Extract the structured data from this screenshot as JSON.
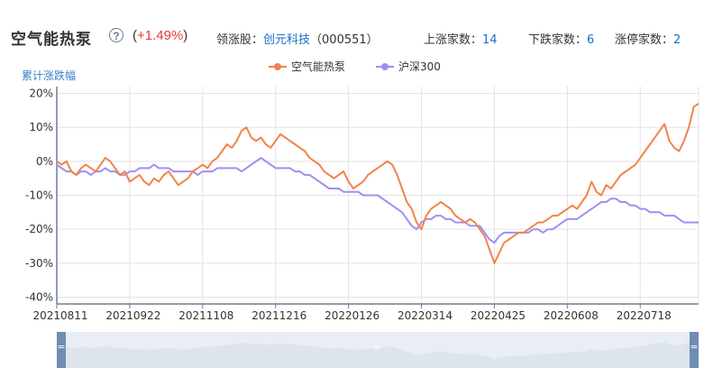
{
  "header": {
    "title": "空气能热泵",
    "help_symbol": "?",
    "change_open": "(",
    "change_pct": "+1.49%",
    "change_close": ")",
    "leader_label": "领涨股：",
    "leader_name": "创元科技",
    "leader_code": "（000551）",
    "up_label": "上涨家数：",
    "up_count": "14",
    "down_label": "下跌家数：",
    "down_count": "6",
    "limit_label": "涨停家数：",
    "limit_count": "2"
  },
  "colors": {
    "sector": "#f2834a",
    "index": "#a08ff0",
    "accent_red": "#e8393a",
    "link_blue": "#1a6fc4",
    "axis": "#6a7f99"
  },
  "chart_data": {
    "type": "line",
    "ylabel": "累计涨跌幅",
    "ylim": [
      -42,
      22
    ],
    "yticks": [
      20,
      10,
      0,
      -10,
      -20,
      -30,
      -40
    ],
    "ytick_labels": [
      "20%",
      "10%",
      "0%",
      "-10%",
      "-20%",
      "-30%",
      "-40%"
    ],
    "x_tick_labels": [
      "20210811",
      "20210922",
      "20211108",
      "20211216",
      "20220126",
      "20220314",
      "20220425",
      "20220608",
      "20220718"
    ],
    "x_tick_positions": [
      0,
      30,
      60,
      90,
      120,
      150,
      180,
      210,
      240
    ],
    "x_max": 264,
    "grid": true,
    "legend_position": "top-center",
    "series": [
      {
        "name": "空气能热泵",
        "points": [
          [
            0,
            0
          ],
          [
            2,
            -1
          ],
          [
            4,
            0
          ],
          [
            6,
            -3
          ],
          [
            8,
            -4
          ],
          [
            10,
            -2
          ],
          [
            12,
            -1
          ],
          [
            14,
            -2
          ],
          [
            16,
            -3
          ],
          [
            18,
            -1
          ],
          [
            20,
            1
          ],
          [
            22,
            0
          ],
          [
            24,
            -2
          ],
          [
            26,
            -4
          ],
          [
            28,
            -3
          ],
          [
            30,
            -6
          ],
          [
            32,
            -5
          ],
          [
            34,
            -4
          ],
          [
            36,
            -6
          ],
          [
            38,
            -7
          ],
          [
            40,
            -5
          ],
          [
            42,
            -6
          ],
          [
            44,
            -4
          ],
          [
            46,
            -3
          ],
          [
            48,
            -5
          ],
          [
            50,
            -7
          ],
          [
            52,
            -6
          ],
          [
            54,
            -5
          ],
          [
            56,
            -3
          ],
          [
            58,
            -2
          ],
          [
            60,
            -1
          ],
          [
            62,
            -2
          ],
          [
            64,
            0
          ],
          [
            66,
            1
          ],
          [
            68,
            3
          ],
          [
            70,
            5
          ],
          [
            72,
            4
          ],
          [
            74,
            6
          ],
          [
            76,
            9
          ],
          [
            78,
            10
          ],
          [
            80,
            7
          ],
          [
            82,
            6
          ],
          [
            84,
            7
          ],
          [
            86,
            5
          ],
          [
            88,
            4
          ],
          [
            90,
            6
          ],
          [
            92,
            8
          ],
          [
            94,
            7
          ],
          [
            96,
            6
          ],
          [
            98,
            5
          ],
          [
            100,
            4
          ],
          [
            102,
            3
          ],
          [
            104,
            1
          ],
          [
            106,
            0
          ],
          [
            108,
            -1
          ],
          [
            110,
            -3
          ],
          [
            112,
            -4
          ],
          [
            114,
            -5
          ],
          [
            116,
            -4
          ],
          [
            118,
            -3
          ],
          [
            120,
            -6
          ],
          [
            122,
            -8
          ],
          [
            124,
            -7
          ],
          [
            126,
            -6
          ],
          [
            128,
            -4
          ],
          [
            130,
            -3
          ],
          [
            132,
            -2
          ],
          [
            134,
            -1
          ],
          [
            136,
            0
          ],
          [
            138,
            -1
          ],
          [
            140,
            -4
          ],
          [
            142,
            -8
          ],
          [
            144,
            -12
          ],
          [
            146,
            -14
          ],
          [
            148,
            -18
          ],
          [
            150,
            -20
          ],
          [
            152,
            -16
          ],
          [
            154,
            -14
          ],
          [
            156,
            -13
          ],
          [
            158,
            -12
          ],
          [
            160,
            -13
          ],
          [
            162,
            -14
          ],
          [
            164,
            -16
          ],
          [
            166,
            -17
          ],
          [
            168,
            -18
          ],
          [
            170,
            -17
          ],
          [
            172,
            -18
          ],
          [
            174,
            -20
          ],
          [
            176,
            -22
          ],
          [
            178,
            -26
          ],
          [
            180,
            -30
          ],
          [
            182,
            -27
          ],
          [
            184,
            -24
          ],
          [
            186,
            -23
          ],
          [
            188,
            -22
          ],
          [
            190,
            -21
          ],
          [
            192,
            -21
          ],
          [
            194,
            -20
          ],
          [
            196,
            -19
          ],
          [
            198,
            -18
          ],
          [
            200,
            -18
          ],
          [
            202,
            -17
          ],
          [
            204,
            -16
          ],
          [
            206,
            -16
          ],
          [
            208,
            -15
          ],
          [
            210,
            -14
          ],
          [
            212,
            -13
          ],
          [
            214,
            -14
          ],
          [
            216,
            -12
          ],
          [
            218,
            -10
          ],
          [
            220,
            -6
          ],
          [
            222,
            -9
          ],
          [
            224,
            -10
          ],
          [
            226,
            -7
          ],
          [
            228,
            -8
          ],
          [
            230,
            -6
          ],
          [
            232,
            -4
          ],
          [
            234,
            -3
          ],
          [
            236,
            -2
          ],
          [
            238,
            -1
          ],
          [
            240,
            1
          ],
          [
            242,
            3
          ],
          [
            244,
            5
          ],
          [
            246,
            7
          ],
          [
            248,
            9
          ],
          [
            250,
            11
          ],
          [
            252,
            6
          ],
          [
            254,
            4
          ],
          [
            256,
            3
          ],
          [
            258,
            6
          ],
          [
            260,
            10
          ],
          [
            262,
            16
          ],
          [
            264,
            17
          ]
        ]
      },
      {
        "name": "沪深300",
        "points": [
          [
            0,
            -1
          ],
          [
            2,
            -2
          ],
          [
            4,
            -3
          ],
          [
            6,
            -3
          ],
          [
            8,
            -4
          ],
          [
            10,
            -3
          ],
          [
            12,
            -3
          ],
          [
            14,
            -4
          ],
          [
            16,
            -3
          ],
          [
            18,
            -3
          ],
          [
            20,
            -2
          ],
          [
            22,
            -3
          ],
          [
            24,
            -3
          ],
          [
            26,
            -4
          ],
          [
            28,
            -4
          ],
          [
            30,
            -3
          ],
          [
            32,
            -3
          ],
          [
            34,
            -2
          ],
          [
            36,
            -2
          ],
          [
            38,
            -2
          ],
          [
            40,
            -1
          ],
          [
            42,
            -2
          ],
          [
            44,
            -2
          ],
          [
            46,
            -2
          ],
          [
            48,
            -3
          ],
          [
            50,
            -3
          ],
          [
            52,
            -3
          ],
          [
            54,
            -3
          ],
          [
            56,
            -3
          ],
          [
            58,
            -4
          ],
          [
            60,
            -3
          ],
          [
            62,
            -3
          ],
          [
            64,
            -3
          ],
          [
            66,
            -2
          ],
          [
            68,
            -2
          ],
          [
            70,
            -2
          ],
          [
            72,
            -2
          ],
          [
            74,
            -2
          ],
          [
            76,
            -3
          ],
          [
            78,
            -2
          ],
          [
            80,
            -1
          ],
          [
            82,
            0
          ],
          [
            84,
            1
          ],
          [
            86,
            0
          ],
          [
            88,
            -1
          ],
          [
            90,
            -2
          ],
          [
            92,
            -2
          ],
          [
            94,
            -2
          ],
          [
            96,
            -2
          ],
          [
            98,
            -3
          ],
          [
            100,
            -3
          ],
          [
            102,
            -4
          ],
          [
            104,
            -4
          ],
          [
            106,
            -5
          ],
          [
            108,
            -6
          ],
          [
            110,
            -7
          ],
          [
            112,
            -8
          ],
          [
            114,
            -8
          ],
          [
            116,
            -8
          ],
          [
            118,
            -9
          ],
          [
            120,
            -9
          ],
          [
            122,
            -9
          ],
          [
            124,
            -9
          ],
          [
            126,
            -10
          ],
          [
            128,
            -10
          ],
          [
            130,
            -10
          ],
          [
            132,
            -10
          ],
          [
            134,
            -11
          ],
          [
            136,
            -12
          ],
          [
            138,
            -13
          ],
          [
            140,
            -14
          ],
          [
            142,
            -15
          ],
          [
            144,
            -17
          ],
          [
            146,
            -19
          ],
          [
            148,
            -20
          ],
          [
            150,
            -18
          ],
          [
            152,
            -17
          ],
          [
            154,
            -17
          ],
          [
            156,
            -16
          ],
          [
            158,
            -16
          ],
          [
            160,
            -17
          ],
          [
            162,
            -17
          ],
          [
            164,
            -18
          ],
          [
            166,
            -18
          ],
          [
            168,
            -18
          ],
          [
            170,
            -19
          ],
          [
            172,
            -19
          ],
          [
            174,
            -19
          ],
          [
            176,
            -21
          ],
          [
            178,
            -23
          ],
          [
            180,
            -24
          ],
          [
            182,
            -22
          ],
          [
            184,
            -21
          ],
          [
            186,
            -21
          ],
          [
            188,
            -21
          ],
          [
            190,
            -21
          ],
          [
            192,
            -21
          ],
          [
            194,
            -21
          ],
          [
            196,
            -20
          ],
          [
            198,
            -20
          ],
          [
            200,
            -21
          ],
          [
            202,
            -20
          ],
          [
            204,
            -20
          ],
          [
            206,
            -19
          ],
          [
            208,
            -18
          ],
          [
            210,
            -17
          ],
          [
            212,
            -17
          ],
          [
            214,
            -17
          ],
          [
            216,
            -16
          ],
          [
            218,
            -15
          ],
          [
            220,
            -14
          ],
          [
            222,
            -13
          ],
          [
            224,
            -12
          ],
          [
            226,
            -12
          ],
          [
            228,
            -11
          ],
          [
            230,
            -11
          ],
          [
            232,
            -12
          ],
          [
            234,
            -12
          ],
          [
            236,
            -13
          ],
          [
            238,
            -13
          ],
          [
            240,
            -14
          ],
          [
            242,
            -14
          ],
          [
            244,
            -15
          ],
          [
            246,
            -15
          ],
          [
            248,
            -15
          ],
          [
            250,
            -16
          ],
          [
            252,
            -16
          ],
          [
            254,
            -16
          ],
          [
            256,
            -17
          ],
          [
            258,
            -18
          ],
          [
            260,
            -18
          ],
          [
            262,
            -18
          ],
          [
            264,
            -18
          ]
        ]
      }
    ]
  },
  "navigator": {
    "left_handle": "=",
    "right_handle": "=",
    "center_grip": "="
  }
}
